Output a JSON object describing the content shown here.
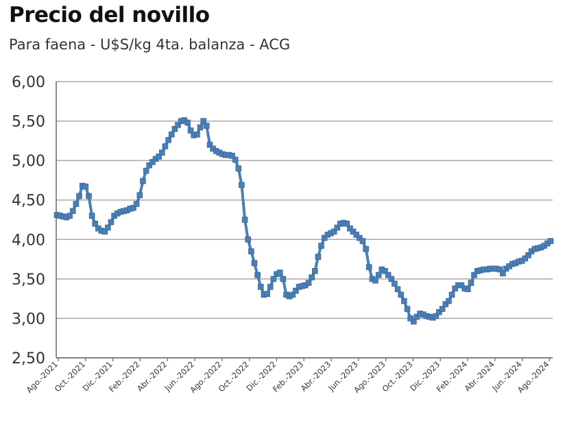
{
  "chart_data": {
    "type": "line",
    "title": "Precio del novillo",
    "subtitle": "Para faena - U$S/kg 4ta. balanza - ACG",
    "xlabel": "",
    "ylabel": "",
    "ylim": [
      2.5,
      6.0
    ],
    "yticks": [
      "2,50",
      "3,00",
      "3,50",
      "4,00",
      "4,50",
      "5,00",
      "5,50",
      "6,00"
    ],
    "xticks": [
      "Ago.-2021",
      "Oct.-2021",
      "Dic.-2021",
      "Feb.-2022",
      "Abr.-2022",
      "Jun.-2022",
      "Ago.-2022",
      "Oct.-2022",
      "Dic.-2022",
      "Feb.-2023",
      "Abr.-2023",
      "Jun.-2023",
      "Ago.-2023",
      "Oct.-2023",
      "Dic.-2023",
      "Feb.-2024",
      "Abr.-2024",
      "Jun.-2024",
      "Ago.-2024"
    ],
    "grid": true,
    "legend": "none",
    "series_color": "#4a7fb5",
    "series": [
      {
        "name": "",
        "values": [
          4.31,
          4.3,
          4.29,
          4.28,
          4.3,
          4.36,
          4.45,
          4.55,
          4.68,
          4.67,
          4.55,
          4.3,
          4.2,
          4.14,
          4.11,
          4.1,
          4.15,
          4.22,
          4.3,
          4.33,
          4.35,
          4.36,
          4.37,
          4.39,
          4.4,
          4.45,
          4.56,
          4.74,
          4.87,
          4.94,
          4.98,
          5.02,
          5.05,
          5.1,
          5.18,
          5.26,
          5.33,
          5.4,
          5.45,
          5.5,
          5.51,
          5.48,
          5.38,
          5.32,
          5.33,
          5.42,
          5.5,
          5.44,
          5.2,
          5.15,
          5.12,
          5.1,
          5.08,
          5.07,
          5.07,
          5.06,
          5.01,
          4.9,
          4.69,
          4.25,
          4.0,
          3.85,
          3.7,
          3.55,
          3.4,
          3.3,
          3.31,
          3.4,
          3.5,
          3.56,
          3.58,
          3.5,
          3.3,
          3.28,
          3.3,
          3.35,
          3.4,
          3.41,
          3.42,
          3.45,
          3.52,
          3.6,
          3.78,
          3.92,
          4.02,
          4.06,
          4.08,
          4.1,
          4.15,
          4.2,
          4.21,
          4.2,
          4.14,
          4.1,
          4.06,
          4.02,
          3.98,
          3.88,
          3.65,
          3.5,
          3.48,
          3.55,
          3.62,
          3.6,
          3.55,
          3.5,
          3.44,
          3.37,
          3.3,
          3.22,
          3.12,
          3.0,
          2.96,
          3.02,
          3.06,
          3.05,
          3.03,
          3.02,
          3.01,
          3.03,
          3.08,
          3.12,
          3.18,
          3.22,
          3.3,
          3.38,
          3.42,
          3.42,
          3.38,
          3.37,
          3.45,
          3.55,
          3.6,
          3.61,
          3.62,
          3.62,
          3.63,
          3.63,
          3.63,
          3.62,
          3.57,
          3.63,
          3.66,
          3.69,
          3.7,
          3.72,
          3.73,
          3.76,
          3.8,
          3.85,
          3.88,
          3.89,
          3.9,
          3.92,
          3.95,
          3.98
        ]
      }
    ]
  }
}
